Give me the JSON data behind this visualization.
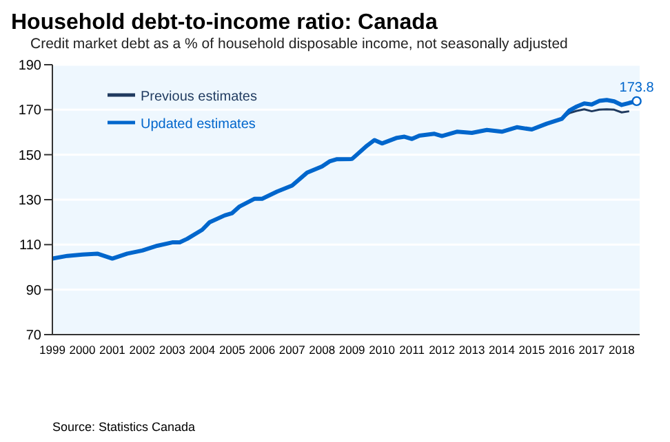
{
  "chart_data": {
    "type": "line",
    "title": "Household debt-to-income ratio: Canada",
    "subtitle": "Credit market debt as a % of household disposable income, not seasonally adjusted",
    "x": [
      1999,
      1999.5,
      2000,
      2000.5,
      2001,
      2001.5,
      2002,
      2002.5,
      2003,
      2003.25,
      2003.5,
      2004,
      2004.25,
      2004.75,
      2005,
      2005.25,
      2005.75,
      2006,
      2006.5,
      2007,
      2007.5,
      2008,
      2008.25,
      2008.5,
      2009,
      2009.5,
      2009.75,
      2010,
      2010.5,
      2010.75,
      2011,
      2011.25,
      2011.75,
      2012,
      2012.5,
      2013,
      2013.5,
      2014,
      2014.5,
      2015,
      2015.5,
      2016,
      2016.25,
      2016.5,
      2016.75,
      2017,
      2017.25,
      2017.5,
      2017.75,
      2018,
      2018.25,
      2018.5
    ],
    "series": [
      {
        "name": "Previous estimates",
        "color": "#1f3a5f",
        "values": [
          null,
          null,
          null,
          null,
          null,
          null,
          null,
          null,
          null,
          null,
          null,
          null,
          null,
          null,
          null,
          null,
          null,
          null,
          null,
          null,
          null,
          null,
          null,
          null,
          null,
          null,
          null,
          null,
          null,
          null,
          null,
          null,
          null,
          null,
          null,
          null,
          null,
          null,
          null,
          null,
          null,
          165.9,
          168.5,
          169.5,
          170.2,
          169.3,
          170,
          170.2,
          170,
          168.8,
          169.3,
          null
        ]
      },
      {
        "name": "Updated estimates",
        "color": "#0066cc",
        "values": [
          103.8,
          105,
          105.6,
          106,
          103.8,
          106,
          107.4,
          109.5,
          111,
          111,
          112.6,
          116.6,
          120,
          123,
          124,
          127,
          130.4,
          130.4,
          133.6,
          136.3,
          142,
          144.8,
          147,
          148,
          148.1,
          154,
          156.5,
          155,
          157.5,
          158,
          157,
          158.5,
          159.3,
          158.3,
          160.2,
          159.7,
          161,
          160.2,
          162.2,
          161.2,
          163.8,
          165.9,
          169.6,
          171.4,
          172.8,
          172.3,
          173.9,
          174.3,
          173.7,
          172.1,
          173,
          173.8
        ]
      }
    ],
    "xlim": [
      1999,
      2018.6
    ],
    "xticks": [
      1999,
      2000,
      2001,
      2002,
      2003,
      2004,
      2005,
      2006,
      2007,
      2008,
      2009,
      2010,
      2011,
      2012,
      2013,
      2014,
      2015,
      2016,
      2017,
      2018
    ],
    "ylim": [
      70,
      190
    ],
    "yticks": [
      70,
      90,
      110,
      130,
      150,
      170,
      190
    ],
    "grid": "y",
    "legend": "top left",
    "marker": "none",
    "line_style": "solid",
    "annotations": [
      {
        "text": "173.8",
        "x": 2018.5,
        "y": 173.8
      },
      "Source: Statistics Canada"
    ]
  }
}
